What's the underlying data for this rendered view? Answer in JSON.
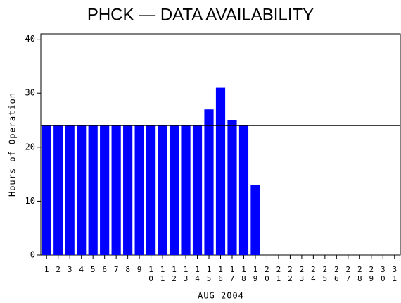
{
  "chart_data": {
    "type": "bar",
    "title": "PHCK — DATA AVAILABILITY",
    "x_label": "AUG 2004",
    "y_label": "Hours of Operation",
    "categories": [
      "1",
      "2",
      "3",
      "4",
      "5",
      "6",
      "7",
      "8",
      "9",
      "10",
      "11",
      "12",
      "13",
      "14",
      "15",
      "16",
      "17",
      "18",
      "19",
      "20",
      "21",
      "22",
      "23",
      "24",
      "25",
      "26",
      "27",
      "28",
      "29",
      "30",
      "31"
    ],
    "values": [
      24,
      24,
      24,
      24,
      24,
      24,
      24,
      24,
      24,
      24,
      24,
      24,
      24,
      24,
      27,
      31,
      25,
      24,
      13,
      null,
      null,
      null,
      null,
      null,
      null,
      null,
      null,
      null,
      null,
      null,
      null
    ],
    "color": "#0000ff",
    "ylim": [
      0,
      41
    ],
    "yticks": [
      0,
      10,
      20,
      30,
      40
    ],
    "reference_line": 24,
    "grid": false
  }
}
